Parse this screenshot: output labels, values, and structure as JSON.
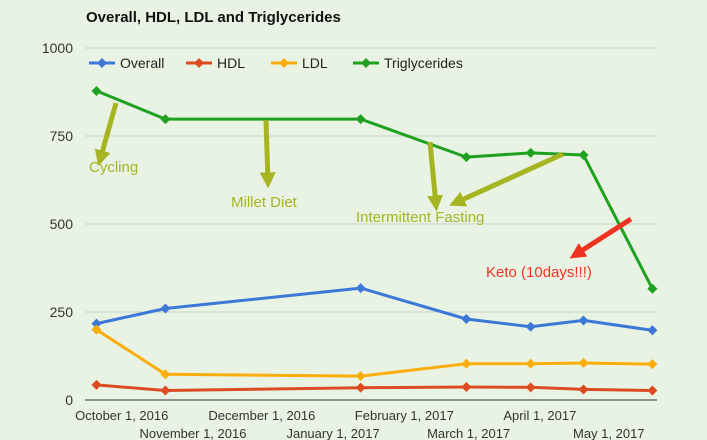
{
  "chart_data": {
    "type": "line",
    "title": "Overall, HDL, LDL and Triglycerides",
    "xlabel": "",
    "ylabel": "",
    "ylim": [
      0,
      1000
    ],
    "yticks": [
      0,
      250,
      500,
      750,
      1000
    ],
    "x_dates": [
      "2016-09-20",
      "2016-10-20",
      "2017-01-13",
      "2017-02-28",
      "2017-03-28",
      "2017-04-20",
      "2017-05-20"
    ],
    "x_range": [
      "2016-09-15",
      "2017-05-22"
    ],
    "x_ticks": [
      {
        "label": "October 1, 2016",
        "date": "2016-10-01",
        "row": 1
      },
      {
        "label": "November 1, 2016",
        "date": "2016-11-01",
        "row": 2
      },
      {
        "label": "December 1, 2016",
        "date": "2016-12-01",
        "row": 1
      },
      {
        "label": "January 1, 2017",
        "date": "2017-01-01",
        "row": 2
      },
      {
        "label": "February 1, 2017",
        "date": "2017-02-01",
        "row": 1
      },
      {
        "label": "March 1, 2017",
        "date": "2017-03-01",
        "row": 2
      },
      {
        "label": "April 1, 2017",
        "date": "2017-04-01",
        "row": 1
      },
      {
        "label": "May 1, 2017",
        "date": "2017-05-01",
        "row": 2
      }
    ],
    "series": [
      {
        "name": "Overall",
        "color": "#3b78d8",
        "values": [
          217,
          260,
          318,
          230,
          208,
          226,
          198
        ]
      },
      {
        "name": "HDL",
        "color": "#dd4b21",
        "values": [
          43,
          27,
          35,
          37,
          36,
          30,
          27
        ]
      },
      {
        "name": "LDL",
        "color": "#fbad0b",
        "values": [
          200,
          73,
          68,
          103,
          103,
          105,
          102
        ]
      },
      {
        "name": "Triglycerides",
        "color": "#1fa01f",
        "values": [
          878,
          798,
          798,
          690,
          702,
          696,
          316
        ]
      }
    ],
    "legend_position": "top-left",
    "annotations": [
      {
        "text": "Cycling",
        "color": "#a6b422"
      },
      {
        "text": "Millet Diet",
        "color": "#a6b422"
      },
      {
        "text": "Intermittent Fasting",
        "color": "#a6b422"
      },
      {
        "text": "Keto (10days!!!)",
        "color": "#ee3322"
      }
    ]
  }
}
